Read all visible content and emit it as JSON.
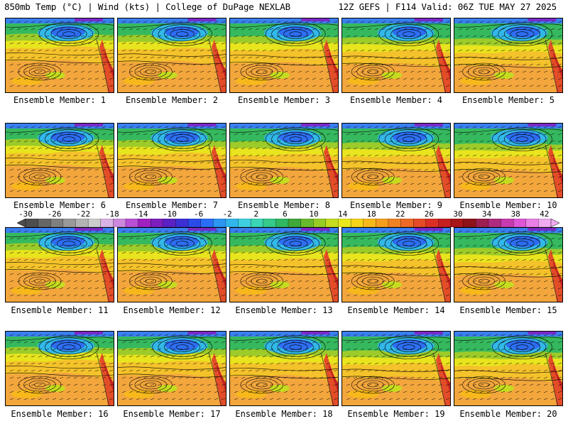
{
  "header": {
    "left": "850mb Temp (°C) | Wind (kts) | College of DuPage NEXLAB",
    "right": "12Z GEFS | F114 Valid: 06Z TUE MAY 27 2025"
  },
  "members": [
    "Ensemble Member: 1",
    "Ensemble Member: 2",
    "Ensemble Member: 3",
    "Ensemble Member: 4",
    "Ensemble Member: 5",
    "Ensemble Member: 6",
    "Ensemble Member: 7",
    "Ensemble Member: 8",
    "Ensemble Member: 9",
    "Ensemble Member: 10",
    "Ensemble Member: 11",
    "Ensemble Member: 12",
    "Ensemble Member: 13",
    "Ensemble Member: 14",
    "Ensemble Member: 15",
    "Ensemble Member: 16",
    "Ensemble Member: 17",
    "Ensemble Member: 18",
    "Ensemble Member: 19",
    "Ensemble Member: 20"
  ],
  "colorbar": {
    "labels": [
      "-30",
      "-26",
      "-22",
      "-18",
      "-14",
      "-10",
      "-6",
      "-2",
      "2",
      "6",
      "10",
      "14",
      "18",
      "22",
      "26",
      "30",
      "34",
      "38",
      "42"
    ],
    "colors": [
      "#4d4d4d",
      "#666666",
      "#7f7f7f",
      "#999999",
      "#b3b3b3",
      "#cccccc",
      "#d9b3e6",
      "#cc88dd",
      "#b84fd6",
      "#a020c0",
      "#7d1fbf",
      "#5a21c4",
      "#3c2fd4",
      "#2b4be8",
      "#2a6ef5",
      "#2d95f2",
      "#30b6ea",
      "#3fcfe0",
      "#3ad6b5",
      "#35c98a",
      "#2fb860",
      "#3ea83a",
      "#68bb2c",
      "#96cc25",
      "#c5dc1f",
      "#e8e81c",
      "#f5d41a",
      "#f7b81b",
      "#f59d1f",
      "#f18223",
      "#ec6a26",
      "#e54b26",
      "#db2f25",
      "#c51f20",
      "#a8161a",
      "#8d1219",
      "#9c1f4f",
      "#b02b7f",
      "#c83ab0",
      "#de55d6",
      "#ea7fe6",
      "#f0aaef"
    ]
  }
}
